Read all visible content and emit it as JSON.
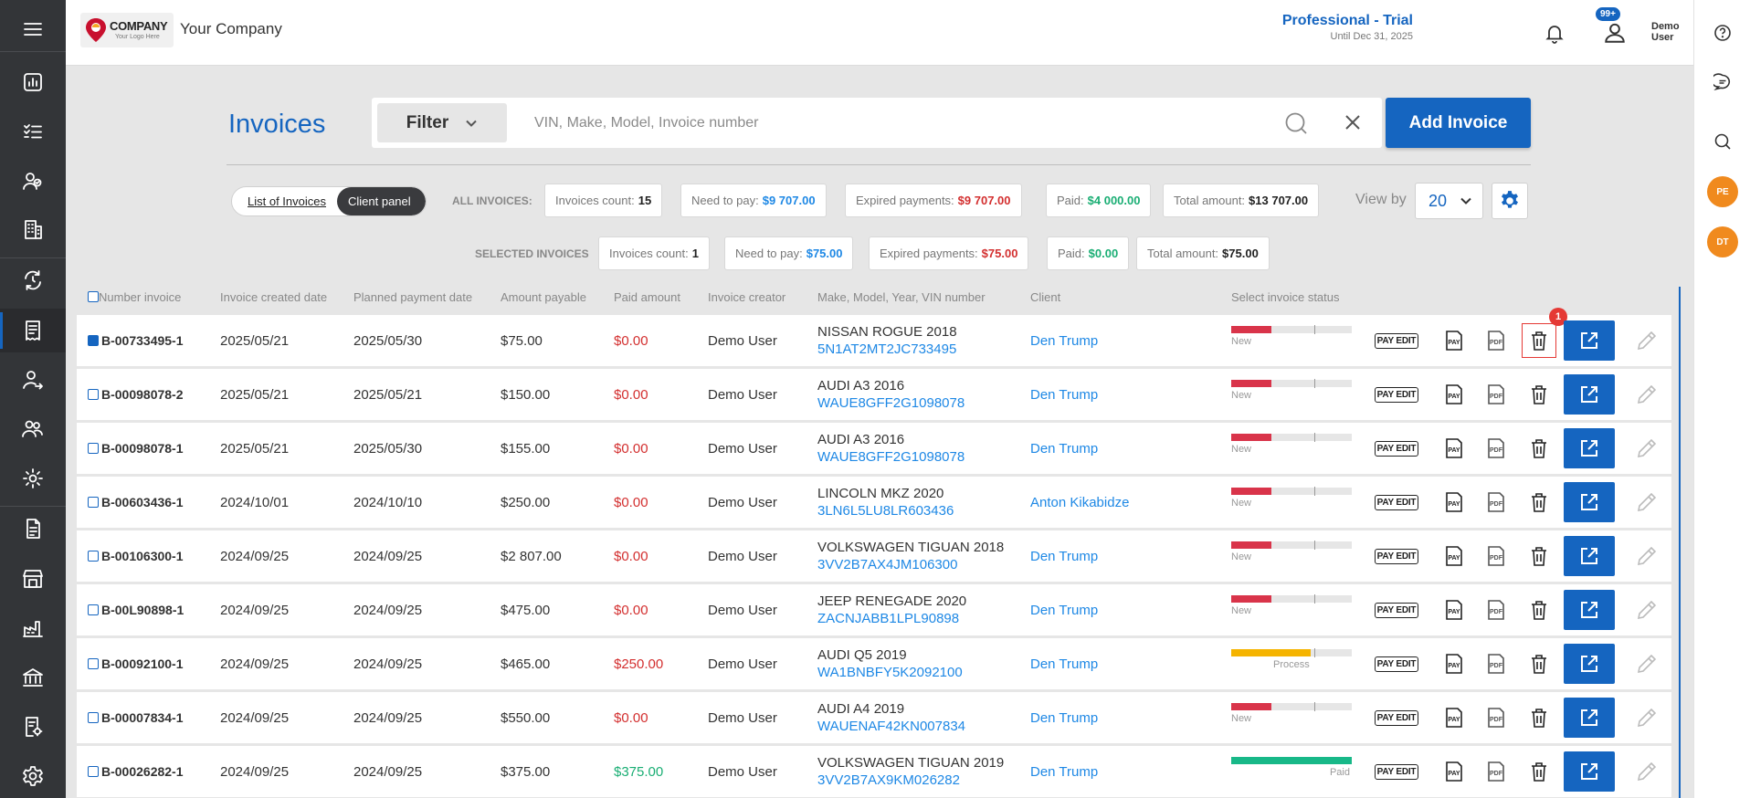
{
  "header": {
    "logo_main": "COMPANY",
    "logo_sub": "Your Logo Here",
    "company_name": "Your Company",
    "plan_title": "Professional - Trial",
    "plan_sub": "Until Dec 31, 2025",
    "notif_badge": "99+",
    "user_name_line1": "Demo",
    "user_name_line2": "User"
  },
  "sidebar_icons": [
    "menu-icon",
    "dashboard-icon",
    "checklist-icon",
    "customers-icon",
    "building-icon",
    "refresh-cycle-icon",
    "invoice-icon",
    "user-transfer-icon",
    "users-icon",
    "user-settings-icon",
    "document-icon",
    "store-icon",
    "factory-icon",
    "bank-icon",
    "report-settings-icon",
    "settings-icon"
  ],
  "right_sidebar": {
    "avatars": [
      "PE",
      "DT"
    ]
  },
  "page": {
    "title": "Invoices",
    "filter_label": "Filter",
    "search_placeholder": "VIN, Make, Model, Invoice number",
    "add_button": "Add Invoice"
  },
  "toggle": {
    "list_label": "List of Invoices",
    "client_label": "Client panel"
  },
  "all_invoices": {
    "label": "ALL INVOICES:",
    "count_label": "Invoices count:",
    "count": "15",
    "need_label": "Need to pay:",
    "need": "$9 707.00",
    "expired_label": "Expired payments:",
    "expired": "$9 707.00",
    "paid_label": "Paid:",
    "paid": "$4 000.00",
    "total_label": "Total amount:",
    "total": "$13 707.00"
  },
  "selected_invoices": {
    "label": "SELECTED INVOICES",
    "count_label": "Invoices count:",
    "count": "1",
    "need_label": "Need to pay:",
    "need": "$75.00",
    "expired_label": "Expired payments:",
    "expired": "$75.00",
    "paid_label": "Paid:",
    "paid": "$0.00",
    "total_label": "Total amount:",
    "total": "$75.00"
  },
  "view_by": {
    "label": "View by",
    "value": "20"
  },
  "table": {
    "headers": {
      "number": "Number invoice",
      "created": "Invoice created date",
      "planned": "Planned payment date",
      "payable": "Amount payable",
      "paid": "Paid amount",
      "creator": "Invoice creator",
      "vehicle": "Make, Model, Year, VIN number",
      "client": "Client",
      "status": "Select invoice status"
    },
    "action_labels": {
      "pay_edit": "PAY EDIT",
      "pay": "PAY",
      "pdf": "PDF"
    },
    "trash_badge": "1",
    "rows": [
      {
        "number": "B-00733495-1",
        "created": "2025/05/21",
        "planned": "2025/05/30",
        "payable": "$75.00",
        "paid": "$0.00",
        "paid_color": "red",
        "creator": "Demo User",
        "vehicle": "NISSAN ROGUE 2018",
        "vin": "5N1AT2MT2JC733495",
        "client": "Den Trump",
        "status": "New",
        "status_level": 0.33,
        "status_color": "#d9344a",
        "selected": true
      },
      {
        "number": "B-00098078-2",
        "created": "2025/05/21",
        "planned": "2025/05/21",
        "payable": "$150.00",
        "paid": "$0.00",
        "paid_color": "red",
        "creator": "Demo User",
        "vehicle": "AUDI A3 2016",
        "vin": "WAUE8GFF2G1098078",
        "client": "Den Trump",
        "status": "New",
        "status_level": 0.33,
        "status_color": "#d9344a",
        "selected": false
      },
      {
        "number": "B-00098078-1",
        "created": "2025/05/21",
        "planned": "2025/05/30",
        "payable": "$155.00",
        "paid": "$0.00",
        "paid_color": "red",
        "creator": "Demo User",
        "vehicle": "AUDI A3 2016",
        "vin": "WAUE8GFF2G1098078",
        "client": "Den Trump",
        "status": "New",
        "status_level": 0.33,
        "status_color": "#d9344a",
        "selected": false
      },
      {
        "number": "B-00603436-1",
        "created": "2024/10/01",
        "planned": "2024/10/10",
        "payable": "$250.00",
        "paid": "$0.00",
        "paid_color": "red",
        "creator": "Demo User",
        "vehicle": "LINCOLN MKZ 2020",
        "vin": "3LN6L5LU8LR603436",
        "client": "Anton Kikabidze",
        "status": "New",
        "status_level": 0.33,
        "status_color": "#d9344a",
        "selected": false
      },
      {
        "number": "B-00106300-1",
        "created": "2024/09/25",
        "planned": "2024/09/25",
        "payable": "$2 807.00",
        "paid": "$0.00",
        "paid_color": "red",
        "creator": "Demo User",
        "vehicle": "VOLKSWAGEN TIGUAN 2018",
        "vin": "3VV2B7AX4JM106300",
        "client": "Den Trump",
        "status": "New",
        "status_level": 0.33,
        "status_color": "#d9344a",
        "selected": false
      },
      {
        "number": "B-00L90898-1",
        "created": "2024/09/25",
        "planned": "2024/09/25",
        "payable": "$475.00",
        "paid": "$0.00",
        "paid_color": "red",
        "creator": "Demo User",
        "vehicle": "JEEP RENEGADE 2020",
        "vin": "ZACNJABB1LPL90898",
        "client": "Den Trump",
        "status": "New",
        "status_level": 0.33,
        "status_color": "#d9344a",
        "selected": false
      },
      {
        "number": "B-00092100-1",
        "created": "2024/09/25",
        "planned": "2024/09/25",
        "payable": "$465.00",
        "paid": "$250.00",
        "paid_color": "red",
        "creator": "Demo User",
        "vehicle": "AUDI Q5 2019",
        "vin": "WA1BNBFY5K2092100",
        "client": "Den Trump",
        "status": "Process",
        "status_level": 0.66,
        "status_color": "#f5b400",
        "selected": false
      },
      {
        "number": "B-00007834-1",
        "created": "2024/09/25",
        "planned": "2024/09/25",
        "payable": "$550.00",
        "paid": "$0.00",
        "paid_color": "red",
        "creator": "Demo User",
        "vehicle": "AUDI A4 2019",
        "vin": "WAUENAF42KN007834",
        "client": "Den Trump",
        "status": "New",
        "status_level": 0.33,
        "status_color": "#d9344a",
        "selected": false
      },
      {
        "number": "B-00026282-1",
        "created": "2024/09/25",
        "planned": "2024/09/25",
        "payable": "$375.00",
        "paid": "$375.00",
        "paid_color": "green",
        "creator": "Demo User",
        "vehicle": "VOLKSWAGEN TIGUAN 2019",
        "vin": "3VV2B7AX9KM026282",
        "client": "Den Trump",
        "status": "Paid",
        "status_level": 1.0,
        "status_color": "#18b888",
        "selected": false
      }
    ]
  }
}
